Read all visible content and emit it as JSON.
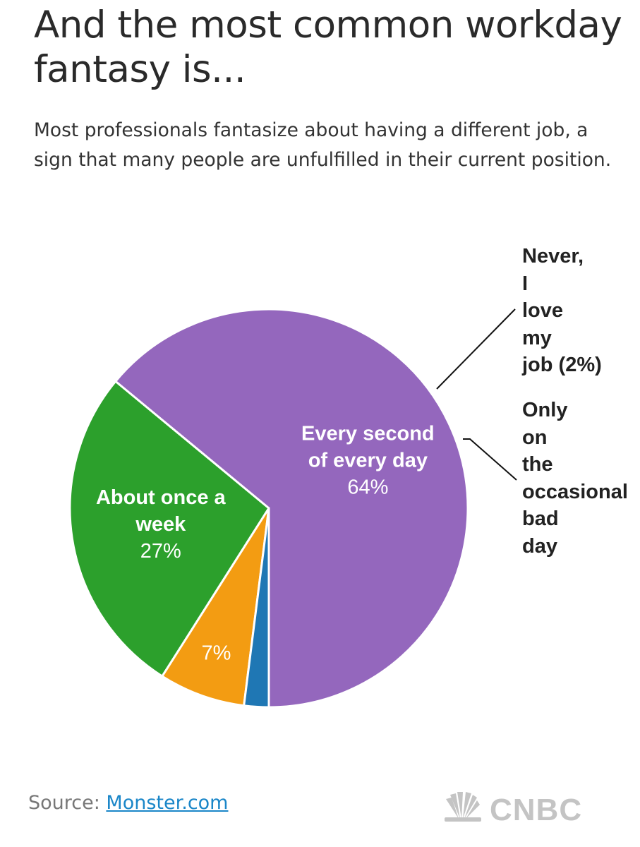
{
  "header": {
    "title": "And the most common workday fantasy is...",
    "subtitle": "Most professionals fantasize about having a different job, a sign that many people are unfulfilled in their current position."
  },
  "chart_data": {
    "type": "pie",
    "start_angle_deg": 180,
    "direction": "counterclockwise",
    "slices": [
      {
        "label": "Every second of every day",
        "value_label": "64%",
        "value": 64,
        "color": "#9467bd",
        "label_lines": [
          "Every second",
          "of every day"
        ]
      },
      {
        "label": "About once a week",
        "value_label": "27%",
        "value": 27,
        "color": "#2ca02c",
        "label_lines": [
          "About once a",
          "week"
        ]
      },
      {
        "label": "Only on the occasional bad day",
        "value_label": "7%",
        "value": 7,
        "color": "#f39c12",
        "label_lines": []
      },
      {
        "label": "Never, I love my job (2%)",
        "value_label": "2%",
        "value": 2,
        "color": "#1f77b4",
        "label_lines": []
      }
    ],
    "external_labels": {
      "never": "Never,\nI\nlove\nmy\njob (2%)",
      "occasional": "Only\non\nthe\noccasional\nbad\nday"
    }
  },
  "footer": {
    "source_prefix": "Source: ",
    "source_link": "Monster.com",
    "brand": "CNBC",
    "brand_color": "#c4c4c4"
  }
}
